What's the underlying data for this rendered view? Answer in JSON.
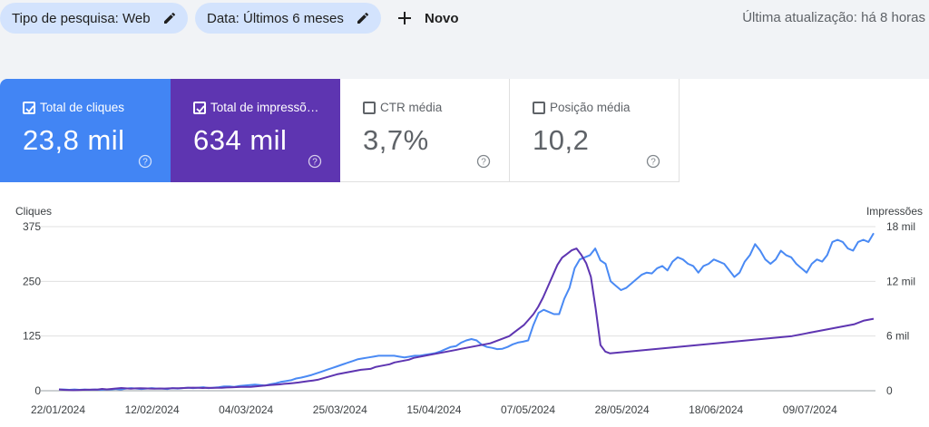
{
  "toolbar": {
    "filter_search_type": "Tipo de pesquisa: Web",
    "filter_date": "Data: Últimos 6 meses",
    "new_label": "Novo",
    "last_updated": "Última atualização: há 8 horas"
  },
  "metrics": [
    {
      "label": "Total de cliques",
      "value": "23,8 mil",
      "checked": true,
      "color": "#4285f4"
    },
    {
      "label": "Total de impressões",
      "value": "634 mil",
      "checked": true,
      "color": "#5e35b1"
    },
    {
      "label": "CTR média",
      "value": "3,7%",
      "checked": false
    },
    {
      "label": "Posição média",
      "value": "10,2",
      "checked": false
    }
  ],
  "chart_data": {
    "type": "line",
    "left_axis": {
      "label": "Cliques",
      "ticks": [
        "0",
        "125",
        "250",
        "375"
      ],
      "range": [
        0,
        375
      ]
    },
    "right_axis": {
      "label": "Impressões",
      "ticks": [
        "0",
        "6 mil",
        "12 mil",
        "18 mil"
      ],
      "range": [
        0,
        18000
      ]
    },
    "x_ticks": [
      "22/01/2024",
      "12/02/2024",
      "04/03/2024",
      "25/03/2024",
      "15/04/2024",
      "07/05/2024",
      "28/05/2024",
      "18/06/2024",
      "09/07/2024"
    ],
    "grid": true,
    "series": [
      {
        "color": "#4a8af4",
        "axis": "left",
        "values": [
          3,
          3,
          2,
          3,
          2,
          3,
          2,
          3,
          2,
          3,
          3,
          4,
          3,
          5,
          6,
          5,
          4,
          5,
          6,
          5,
          5,
          4,
          6,
          5,
          6,
          7,
          6,
          7,
          8,
          6,
          7,
          8,
          10,
          10,
          9,
          11,
          12,
          13,
          14,
          13,
          12,
          15,
          17,
          20,
          22,
          24,
          28,
          30,
          33,
          36,
          40,
          44,
          48,
          52,
          56,
          60,
          64,
          68,
          72,
          74,
          76,
          78,
          80,
          80,
          80,
          80,
          78,
          76,
          78,
          80,
          80,
          82,
          84,
          86,
          90,
          95,
          100,
          102,
          110,
          115,
          118,
          115,
          105,
          100,
          98,
          95,
          96,
          100,
          106,
          110,
          112,
          115,
          150,
          178,
          185,
          180,
          175,
          175,
          210,
          235,
          280,
          300,
          305,
          310,
          325,
          298,
          290,
          250,
          240,
          230,
          235,
          245,
          255,
          265,
          270,
          268,
          280,
          285,
          275,
          295,
          305,
          300,
          290,
          285,
          270,
          285,
          290,
          300,
          295,
          290,
          275,
          260,
          270,
          295,
          310,
          335,
          320,
          300,
          290,
          300,
          320,
          310,
          305,
          290,
          280,
          270,
          290,
          300,
          295,
          310,
          340,
          345,
          340,
          325,
          320,
          340,
          345,
          340,
          360
        ]
      },
      {
        "color": "#5e35b1",
        "axis": "right",
        "values": [
          150,
          100,
          80,
          60,
          80,
          100,
          110,
          120,
          130,
          200,
          150,
          200,
          250,
          300,
          260,
          230,
          260,
          280,
          260,
          240,
          230,
          250,
          240,
          260,
          270,
          280,
          300,
          320,
          340,
          330,
          300,
          320,
          310,
          320,
          330,
          360,
          380,
          400,
          420,
          420,
          430,
          480,
          520,
          580,
          620,
          660,
          700,
          760,
          800,
          850,
          900,
          980,
          1050,
          1120,
          1200,
          1350,
          1500,
          1650,
          1800,
          1900,
          2000,
          2100,
          2200,
          2300,
          2350,
          2400,
          2600,
          2700,
          2800,
          2900,
          3100,
          3200,
          3300,
          3400,
          3600,
          3700,
          3800,
          3900,
          4000,
          4100,
          4200,
          4300,
          4400,
          4500,
          4600,
          4700,
          4800,
          4900,
          5000,
          5100,
          5200,
          5400,
          5600,
          5800,
          6000,
          6400,
          6800,
          7200,
          7800,
          8400,
          9200,
          10200,
          11400,
          12600,
          13800,
          14600,
          15000,
          15400,
          15600,
          14900,
          14000,
          12500,
          9000,
          5000,
          4300,
          4100,
          4150,
          4200,
          4250,
          4300,
          4350,
          4400,
          4450,
          4500,
          4550,
          4600,
          4650,
          4700,
          4750,
          4800,
          4850,
          4900,
          4950,
          5000,
          5050,
          5100,
          5150,
          5200,
          5250,
          5300,
          5350,
          5400,
          5450,
          5500,
          5550,
          5600,
          5650,
          5700,
          5750,
          5800,
          5850,
          5900,
          5950,
          6000,
          6100,
          6200,
          6300,
          6400,
          6500,
          6600,
          6700,
          6800,
          6900,
          7000,
          7100,
          7200,
          7300,
          7500,
          7700,
          7800,
          7900
        ]
      }
    ]
  }
}
